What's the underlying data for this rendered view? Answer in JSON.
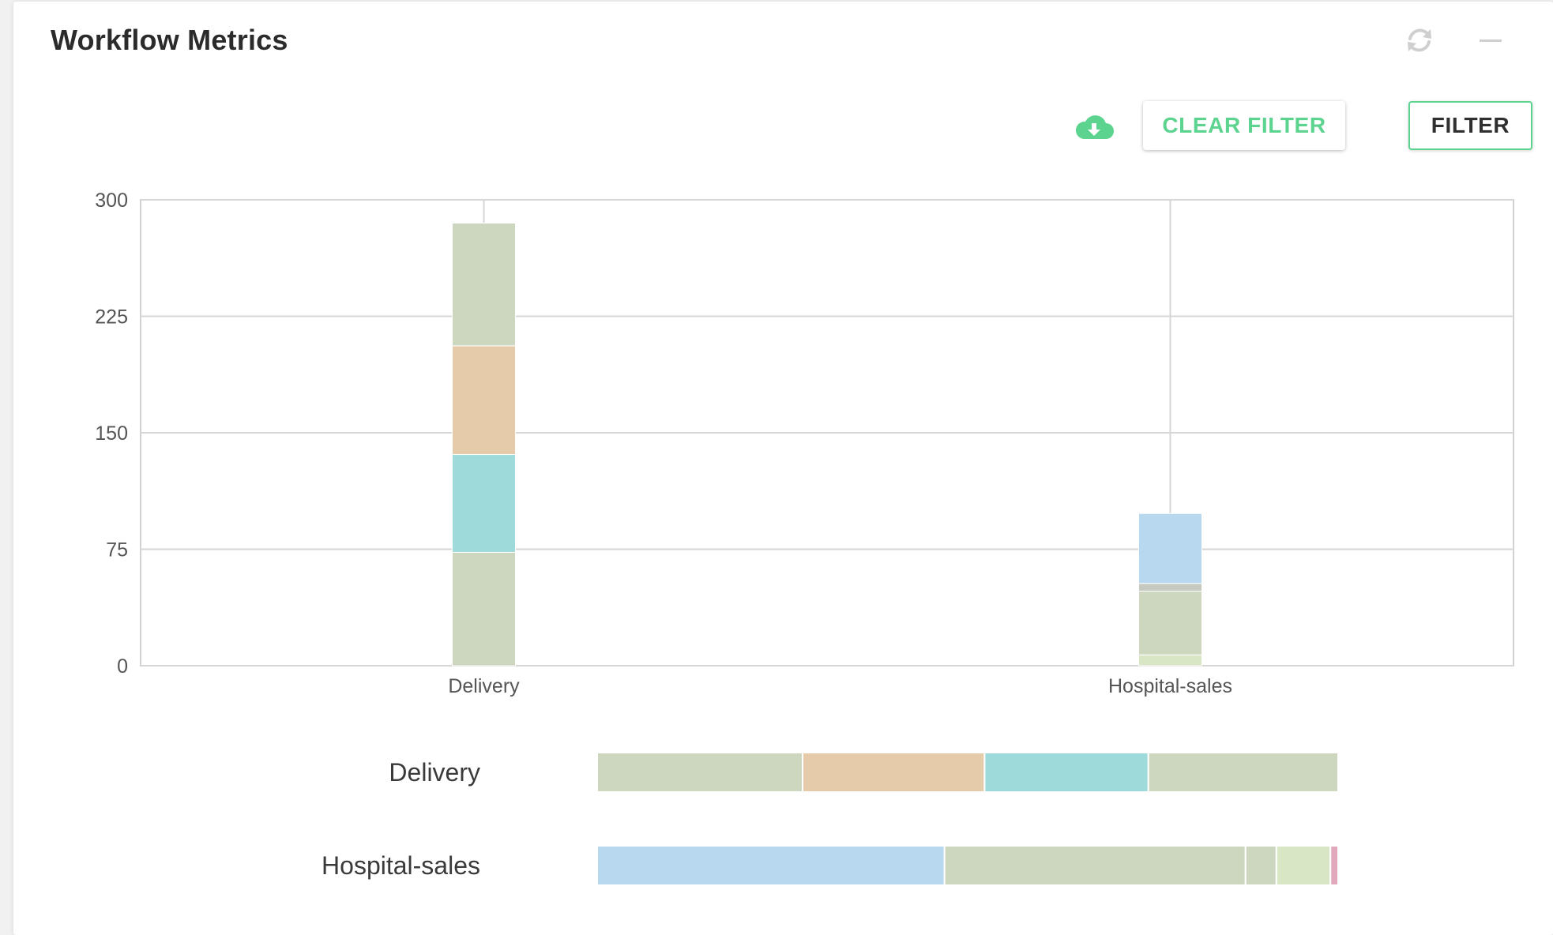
{
  "widget": {
    "title": "Workflow Metrics",
    "icons": {
      "refresh": "refresh-icon",
      "minimize": "minimize-icon",
      "download": "cloud-download-icon"
    },
    "clear_filter_label": "CLEAR FILTER",
    "filter_label": "FILTER"
  },
  "colors": {
    "accent": "#5cd48f",
    "sage": "#cdd6bf",
    "peach": "#e6cbab",
    "teal": "#9fdadb",
    "sky": "#b8d8f0",
    "gray": "#c6c9c0",
    "mint": "#d8e6c6",
    "pink": "#e2a8bc"
  },
  "chart_data": [
    {
      "type": "bar",
      "stacked": true,
      "categories": [
        "Delivery",
        "Hospital-sales"
      ],
      "ylim": [
        0,
        300
      ],
      "yticks": [
        0,
        75,
        150,
        225,
        300
      ],
      "grid": true,
      "series": [
        {
          "color": "#cdd6bf",
          "values": [
            73,
            0
          ]
        },
        {
          "color": "#9fdadb",
          "values": [
            63,
            0
          ]
        },
        {
          "color": "#e6cbab",
          "values": [
            70,
            0
          ]
        },
        {
          "color": "#cdd6bf",
          "values": [
            79,
            0
          ]
        },
        {
          "color": "#d8e6c6",
          "values": [
            0,
            7
          ]
        },
        {
          "color": "#cdd6bf",
          "values": [
            0,
            41
          ]
        },
        {
          "color": "#c6c9c0",
          "values": [
            0,
            5
          ]
        },
        {
          "color": "#b8d8f0",
          "values": [
            0,
            45
          ]
        }
      ]
    },
    {
      "type": "bar",
      "orientation": "horizontal",
      "stacked": true,
      "categories": [
        "Delivery",
        "Hospital-sales"
      ],
      "rows": [
        {
          "label": "Delivery",
          "segments": [
            {
              "color": "#cdd6bf",
              "value": 79
            },
            {
              "color": "#e6cbab",
              "value": 70
            },
            {
              "color": "#9fdadb",
              "value": 63
            },
            {
              "color": "#cdd6bf",
              "value": 73
            }
          ]
        },
        {
          "label": "Hospital-sales",
          "segments": [
            {
              "color": "#b8d8f0",
              "value": 45
            },
            {
              "color": "#cdd6bf",
              "value": 39
            },
            {
              "color": "#cdd6bf",
              "value": 4
            },
            {
              "color": "#d8e6c6",
              "value": 7
            },
            {
              "color": "#e2a8bc",
              "value": 1
            }
          ]
        }
      ]
    }
  ]
}
